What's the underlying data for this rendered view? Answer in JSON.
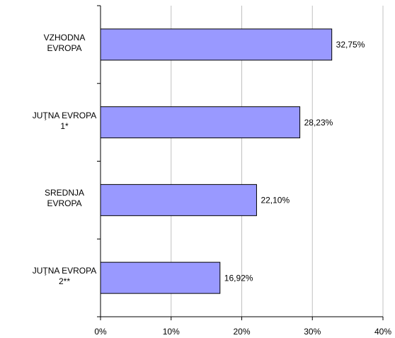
{
  "chart_data": {
    "type": "bar",
    "orientation": "horizontal",
    "categories": [
      "VZHODNA\nEVROPA",
      "JUŢNA EVROPA\n1*",
      "SREDNJA\nEVROPA",
      "JUŢNA EVROPA\n2**"
    ],
    "values": [
      32.75,
      28.23,
      22.1,
      16.92
    ],
    "value_labels": [
      "32,75%",
      "28,23%",
      "22,10%",
      "16,92%"
    ],
    "color": "#9999ff",
    "xlim": [
      0,
      40
    ],
    "xticks": [
      {
        "value": 0,
        "label": "0%"
      },
      {
        "value": 10,
        "label": "10%"
      },
      {
        "value": 20,
        "label": "20%"
      },
      {
        "value": 30,
        "label": "30%"
      },
      {
        "value": 40,
        "label": "40%"
      }
    ],
    "grid": true
  }
}
